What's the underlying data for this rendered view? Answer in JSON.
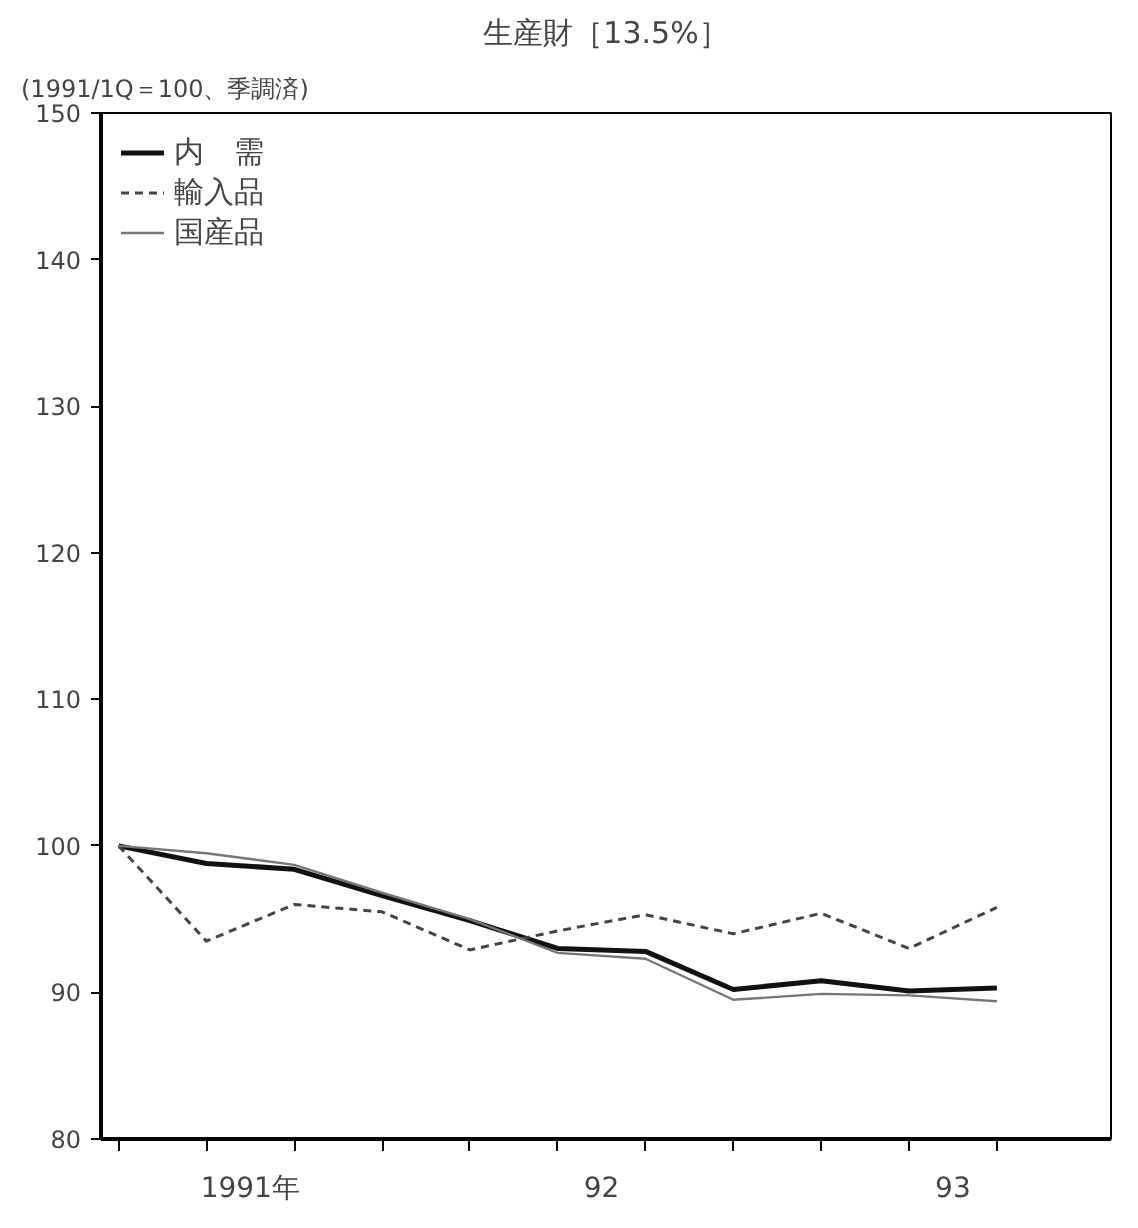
{
  "chart_data": {
    "type": "line",
    "title": "生産財［13.5%］",
    "ylabel": "(1991/1Q＝100、季調済)",
    "categories": [
      null,
      null,
      null,
      null,
      null,
      null,
      null,
      null,
      null,
      null,
      null
    ],
    "annotations": [
      "1991年",
      "92",
      "93"
    ],
    "series": [
      {
        "name": "内　需",
        "color": "#111111",
        "line_style": "solid",
        "values": [
          100,
          98.8,
          98.4,
          96.6,
          94.9,
          93.0,
          92.8,
          90.2,
          90.8,
          90.1,
          90.3
        ]
      },
      {
        "name": "輸入品",
        "color": "#444444",
        "line_style": "dashed",
        "values": [
          100,
          93.5,
          96.0,
          95.5,
          92.9,
          94.2,
          95.3,
          94.0,
          95.4,
          93.0,
          95.8
        ]
      },
      {
        "name": "国産品",
        "color": "#777777",
        "line_style": "solid",
        "values": [
          100,
          99.5,
          98.7,
          96.8,
          95.0,
          92.7,
          92.3,
          89.5,
          89.9,
          89.8,
          89.4
        ]
      }
    ],
    "ylim": [
      80,
      150
    ],
    "yticks": [
      80,
      90,
      100,
      110,
      120,
      130,
      140,
      150
    ],
    "grid": false,
    "legend": "top left",
    "marker": "none"
  }
}
